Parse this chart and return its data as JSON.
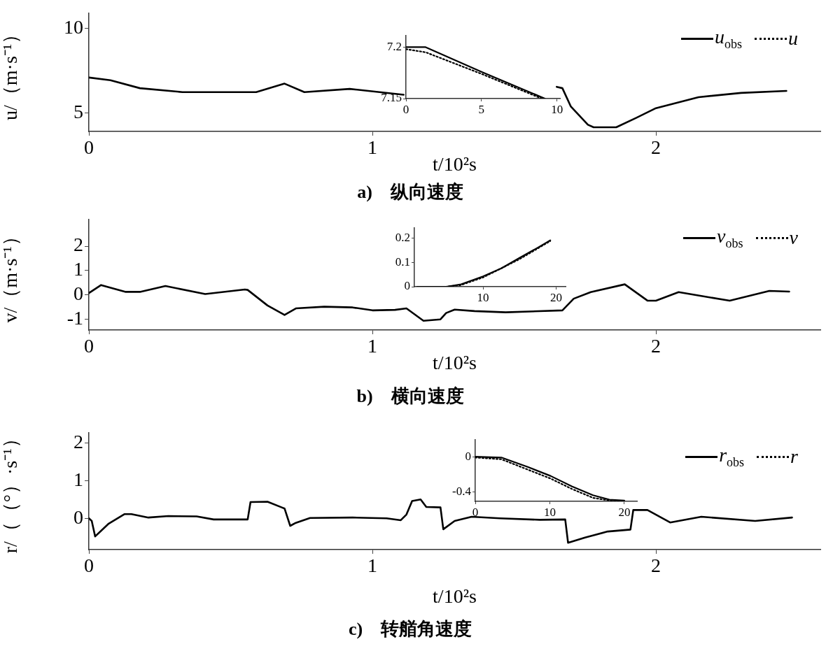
{
  "chart_data": [
    {
      "type": "line",
      "title": "a)　纵向速度",
      "xlabel": "t/10²s",
      "ylabel": "u/（m·s⁻¹）",
      "xlim": [
        0,
        2.58
      ],
      "xticks": [
        0,
        1,
        2
      ],
      "ylim": [
        3.9,
        10.9
      ],
      "yticks": [
        5,
        10
      ],
      "legend": "top right",
      "x": [
        0,
        0.076,
        0.18,
        0.33,
        0.59,
        0.69,
        0.76,
        0.92,
        1.11,
        1.3,
        1.65,
        1.67,
        1.7,
        1.76,
        1.78,
        1.86,
        1.93,
        2.0,
        2.15,
        2.3,
        2.46
      ],
      "series": [
        {
          "name": "u$_{obs}$",
          "color": "#000000",
          "line_style": "solid",
          "values": [
            7.09,
            6.93,
            6.46,
            6.23,
            6.23,
            6.73,
            6.23,
            6.42,
            6.07,
            null,
            6.54,
            6.46,
            5.37,
            4.3,
            4.15,
            4.15,
            4.7,
            5.28,
            5.93,
            6.18,
            6.3
          ]
        },
        {
          "name": "u",
          "color": "#000000",
          "line_style": "dotted",
          "values": [
            null,
            null,
            null,
            null,
            null,
            null,
            null,
            null,
            null,
            null,
            null,
            null,
            null,
            null,
            null,
            null,
            null,
            null,
            null,
            null,
            null
          ]
        }
      ]
    },
    {
      "type": "line",
      "xlim": [
        0,
        10.2
      ],
      "xticks": [
        0,
        5,
        10
      ],
      "ylim": [
        7.15,
        7.211
      ],
      "yticks": [
        7.15,
        7.2
      ],
      "series": [
        {
          "color": "#000000",
          "line_style": "solid",
          "x": [
            0,
            1.3,
            5,
            9.2
          ],
          "values": [
            7.2,
            7.2,
            7.176,
            7.15
          ]
        },
        {
          "color": "#000000",
          "line_style": "dotted",
          "x": [
            0,
            1.3,
            5,
            9.0
          ],
          "values": [
            7.198,
            7.195,
            7.174,
            7.15
          ]
        }
      ]
    },
    {
      "type": "line",
      "title": "b)　横向速度",
      "xlabel": "t/10²s",
      "ylabel": "v/（m·s⁻¹）",
      "xlim": [
        0,
        2.58
      ],
      "xticks": [
        0,
        1,
        2
      ],
      "ylim": [
        -1.45,
        3.1
      ],
      "yticks": [
        -1,
        0,
        1,
        2
      ],
      "legend": "top right",
      "x": [
        0,
        0.043,
        0.13,
        0.18,
        0.27,
        0.41,
        0.55,
        0.56,
        0.63,
        0.69,
        0.73,
        0.83,
        0.93,
        1.0,
        1.08,
        1.12,
        1.18,
        1.24,
        1.26,
        1.29,
        1.36,
        1.47,
        1.67,
        1.71,
        1.77,
        1.89,
        1.97,
        2.0,
        2.08,
        2.16,
        2.26,
        2.4,
        2.47
      ],
      "series": [
        {
          "name": "v$_{obs}$",
          "color": "#000000",
          "line_style": "solid",
          "values": [
            0.07,
            0.4,
            0.12,
            0.12,
            0.36,
            0.03,
            0.22,
            0.2,
            -0.44,
            -0.83,
            -0.56,
            -0.49,
            -0.52,
            -0.64,
            -0.62,
            -0.56,
            -1.07,
            -1.01,
            -0.75,
            -0.61,
            -0.67,
            -0.72,
            -0.64,
            -0.16,
            0.11,
            0.43,
            -0.24,
            -0.24,
            0.11,
            -0.05,
            -0.24,
            0.16,
            0.13
          ]
        },
        {
          "name": "v",
          "color": "#000000",
          "line_style": "dotted",
          "values": [
            null,
            null,
            null,
            null,
            null,
            null,
            null,
            null,
            null,
            null,
            null,
            null,
            null,
            null,
            null,
            null,
            null,
            null,
            null,
            null,
            null,
            null,
            null,
            null,
            null,
            null,
            null,
            null,
            null,
            null,
            null,
            null,
            null
          ]
        }
      ]
    },
    {
      "type": "line",
      "xlim": [
        0.6,
        21.3
      ],
      "xticks": [
        10,
        20
      ],
      "ylim": [
        0,
        0.24
      ],
      "yticks": [
        0,
        0.1,
        0.2
      ],
      "series": [
        {
          "color": "#000000",
          "line_style": "solid",
          "x": [
            1,
            5,
            7,
            10,
            12.5,
            15,
            17.5,
            19.2
          ],
          "values": [
            0,
            0,
            0.01,
            0.042,
            0.075,
            0.118,
            0.16,
            0.19
          ]
        },
        {
          "color": "#000000",
          "line_style": "dotted",
          "x": [
            1,
            5,
            7,
            10,
            15,
            19.2
          ],
          "values": [
            0,
            0,
            0.007,
            0.038,
            0.113,
            0.187
          ]
        }
      ]
    },
    {
      "type": "line",
      "title": "c)　转艏角速度",
      "xlabel": "t/10²s",
      "ylabel": "r/（（°）·s⁻¹）",
      "xlim": [
        0,
        2.58
      ],
      "xticks": [
        0,
        1,
        2
      ],
      "ylim": [
        -0.83,
        2.27
      ],
      "yticks": [
        0,
        1,
        2
      ],
      "legend": "top right",
      "x": [
        0,
        0.01,
        0.022,
        0.07,
        0.125,
        0.15,
        0.21,
        0.28,
        0.38,
        0.44,
        0.56,
        0.57,
        0.63,
        0.68,
        0.69,
        0.71,
        0.73,
        0.78,
        0.93,
        1.05,
        1.1,
        1.12,
        1.14,
        1.17,
        1.19,
        1.24,
        1.25,
        1.29,
        1.35,
        1.45,
        1.59,
        1.68,
        1.69,
        1.75,
        1.83,
        1.91,
        1.92,
        1.97,
        2.05,
        2.16,
        2.35,
        2.48
      ],
      "series": [
        {
          "name": "r$_{obs}$",
          "color": "#000000",
          "line_style": "solid",
          "values": [
            0,
            -0.07,
            -0.48,
            -0.14,
            0.11,
            0.11,
            0.02,
            0.06,
            0.05,
            -0.03,
            -0.03,
            0.43,
            0.44,
            0.29,
            0.26,
            -0.2,
            -0.12,
            0.01,
            0.02,
            0,
            -0.05,
            0.1,
            0.46,
            0.5,
            0.3,
            0.29,
            -0.29,
            -0.07,
            0.04,
            0,
            -0.04,
            -0.03,
            -0.65,
            -0.51,
            -0.35,
            -0.3,
            0.22,
            0.22,
            -0.11,
            0.04,
            -0.07,
            0.02
          ]
        },
        {
          "name": "r",
          "color": "#000000",
          "line_style": "dotted",
          "values": [
            null,
            null,
            null,
            null,
            null,
            null,
            null,
            null,
            null,
            null,
            null,
            null,
            null,
            null,
            null,
            null,
            null,
            null,
            null,
            null,
            null,
            null,
            null,
            null,
            null,
            null,
            null,
            null,
            null,
            null,
            null,
            null,
            null,
            null,
            null,
            null,
            null,
            null,
            null,
            null,
            null,
            null
          ]
        }
      ]
    },
    {
      "type": "line",
      "xlim": [
        0,
        21.7
      ],
      "xticks": [
        0,
        10,
        20
      ],
      "ylim": [
        -0.51,
        0.19
      ],
      "yticks": [
        -0.4,
        0
      ],
      "series": [
        {
          "color": "#000000",
          "line_style": "solid",
          "x": [
            0,
            3.5,
            7.1,
            10.1,
            13,
            15.8,
            18,
            20
          ],
          "values": [
            0,
            -0.01,
            -0.12,
            -0.22,
            -0.34,
            -0.44,
            -0.49,
            -0.5
          ]
        },
        {
          "color": "#000000",
          "line_style": "dotted",
          "x": [
            0,
            3.5,
            7.1,
            10.1,
            13,
            15.8,
            18,
            20
          ],
          "values": [
            -0.01,
            -0.03,
            -0.15,
            -0.25,
            -0.37,
            -0.47,
            -0.5,
            -0.51
          ]
        }
      ]
    }
  ]
}
